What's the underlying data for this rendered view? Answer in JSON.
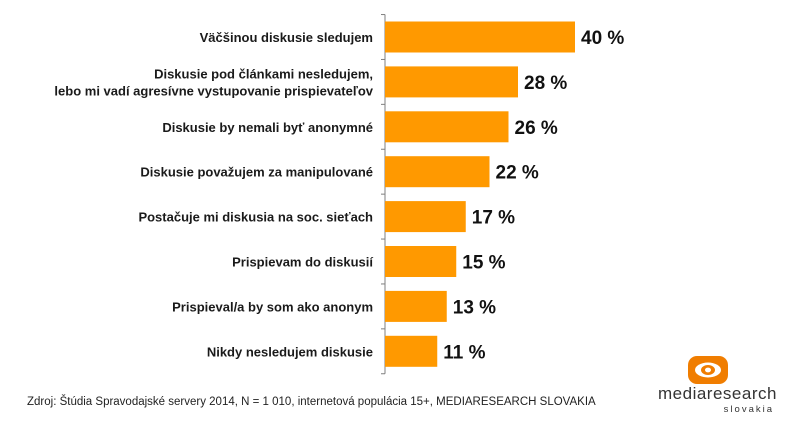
{
  "chart_data": {
    "type": "bar",
    "orientation": "horizontal",
    "categories": [
      [
        "Väčšinou diskusie sledujem"
      ],
      [
        "Diskusie pod článkami nesledujem,",
        "lebo mi vadí agresívne vystupovanie prispievateľov"
      ],
      [
        "Diskusie by nemali byť anonymné"
      ],
      [
        "Diskusie považujem za manipulované"
      ],
      [
        "Postačuje mi diskusia na soc. sieťach"
      ],
      [
        "Prispievam do diskusií"
      ],
      [
        "Prispieval/a by som ako anonym"
      ],
      [
        "Nikdy nesledujem diskusie"
      ]
    ],
    "values": [
      40,
      28,
      26,
      22,
      17,
      15,
      13,
      11
    ],
    "value_labels": [
      "40 %",
      "28 %",
      "26 %",
      "22 %",
      "17 %",
      "15 %",
      "13 %",
      "11 %"
    ],
    "xlim": [
      0,
      40
    ],
    "bar_color": "#FF9900",
    "axis_color": "#7f7f7f",
    "grid": false,
    "legend": "none"
  },
  "footer": {
    "source": "Zdroj: Štúdia Spravodajské servery 2014, N = 1 010, internetová populácia 15+, MEDIARESEARCH SLOVAKIA"
  },
  "logo": {
    "name": "mediaresearch",
    "sub": "slovakia",
    "accent_color": "#F07D00"
  }
}
